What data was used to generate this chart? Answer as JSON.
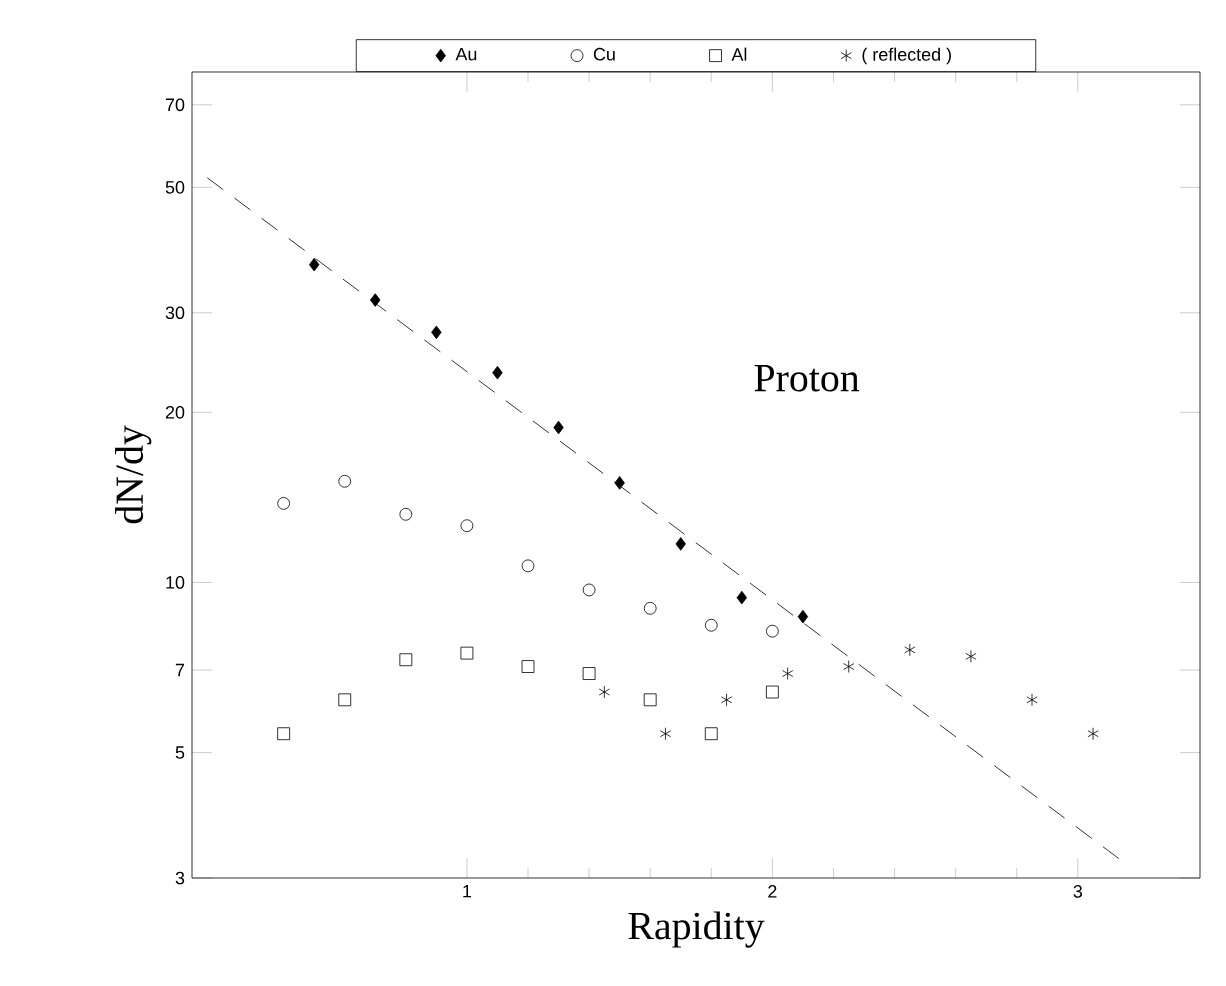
{
  "chart_data": {
    "type": "scatter",
    "xlabel": "Rapidity",
    "ylabel": "dN/dy",
    "annotations": [
      "Proton"
    ],
    "xlim": [
      0.1,
      3.4
    ],
    "xticks": [
      1,
      2,
      3
    ],
    "ylim": [
      3,
      80
    ],
    "yticks": [
      3,
      5,
      7,
      10,
      20,
      30,
      50,
      70
    ],
    "log": "y",
    "grid": false,
    "legend": "top",
    "series": [
      {
        "name": "Au",
        "color": "#000000",
        "marker": "diamond",
        "x": [
          0.5,
          0.7,
          0.9,
          1.1,
          1.3,
          1.5,
          1.7,
          1.9,
          2.1
        ],
        "values": [
          36.5,
          31.6,
          27.7,
          23.5,
          18.8,
          15.0,
          11.7,
          9.4,
          8.7
        ]
      },
      {
        "name": "Cu",
        "color": "#000000",
        "marker": "circle",
        "x": [
          0.4,
          0.6,
          0.8,
          1.0,
          1.2,
          1.4,
          1.6,
          1.8,
          2.0
        ],
        "values": [
          13.8,
          15.1,
          13.2,
          12.6,
          10.7,
          9.7,
          9.0,
          8.4,
          8.2
        ]
      },
      {
        "name": "Al",
        "color": "#000000",
        "marker": "square",
        "x": [
          0.4,
          0.6,
          0.8,
          1.0,
          1.2,
          1.4,
          1.6,
          1.8,
          2.0
        ],
        "values": [
          5.4,
          6.2,
          7.3,
          7.5,
          7.1,
          6.9,
          6.2,
          5.4,
          6.4
        ]
      },
      {
        "name": "( reflected )",
        "color": "#000000",
        "marker": "cross",
        "x": [
          1.45,
          1.65,
          1.85,
          2.05,
          2.25,
          2.45,
          2.65,
          2.85,
          3.05
        ],
        "values": [
          6.4,
          5.4,
          6.2,
          6.9,
          7.1,
          7.6,
          7.4,
          6.2,
          5.4
        ]
      },
      {
        "type": "line",
        "color": "#000000",
        "line_style": "dashed",
        "marker": "none",
        "x": [
          0.15,
          3.15
        ],
        "values": [
          52,
          3.2
        ]
      }
    ]
  }
}
